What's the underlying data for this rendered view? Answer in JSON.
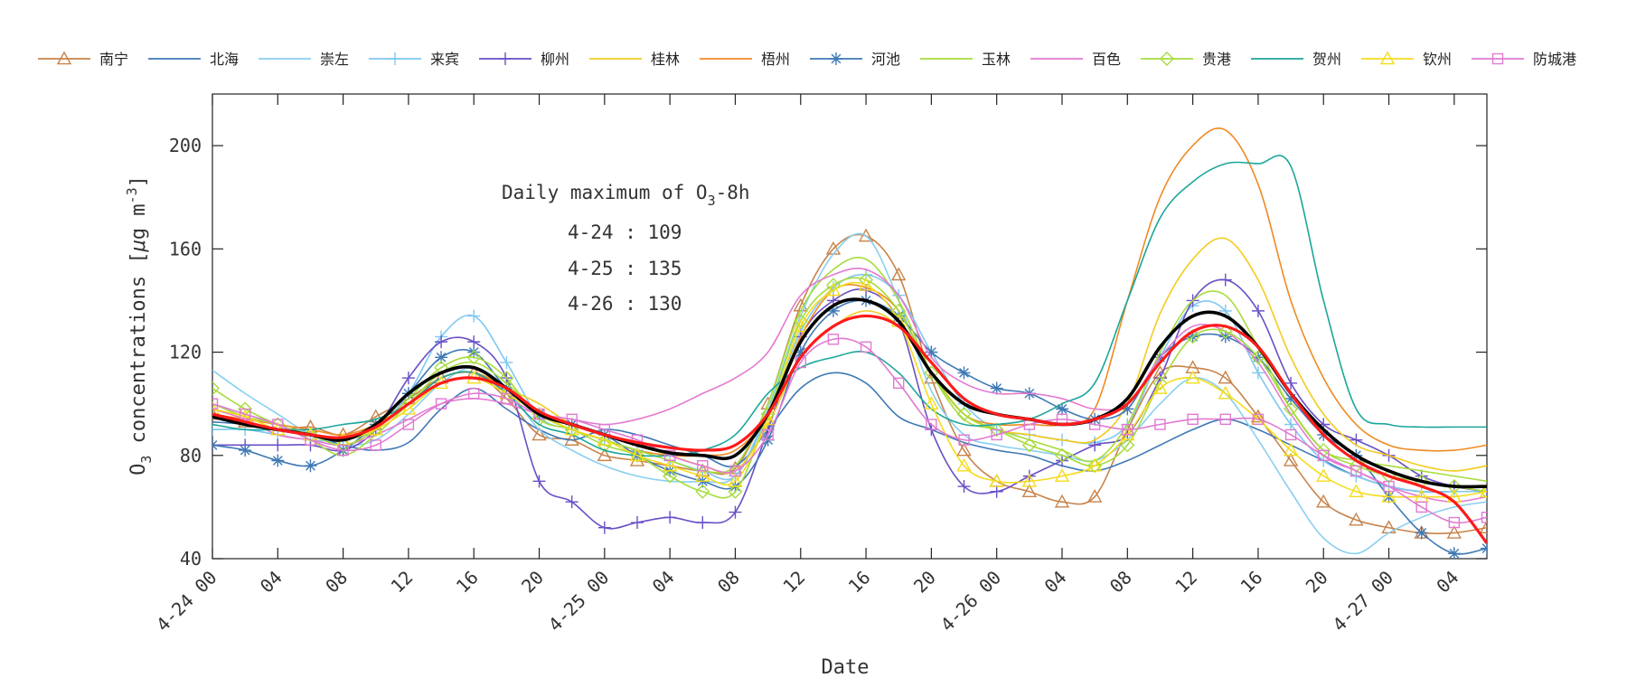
{
  "chart_data": {
    "type": "line",
    "title": "",
    "xlabel": "Date",
    "ylabel": "O3 concentrations [μg m-3]",
    "ylabel_parts": {
      "base": "O",
      "sub": "3",
      "main": " concentrations [",
      "mu": "μ",
      "g m": "g m",
      "sup": "-3",
      "close": "]"
    },
    "ylim": [
      40,
      220
    ],
    "yticks": [
      40,
      80,
      120,
      160,
      200
    ],
    "xlim": [
      0,
      78
    ],
    "x_unit": "hours from 4-24 00",
    "xtick_labels": [
      "4-24 00",
      "04",
      "08",
      "12",
      "16",
      "20",
      "4-25 00",
      "04",
      "08",
      "12",
      "16",
      "20",
      "4-26 00",
      "04",
      "08",
      "12",
      "16",
      "20",
      "4-27 00",
      "04"
    ],
    "grid": false,
    "legend_position": "top",
    "annotation": {
      "title": "Daily maximum of O3-8h",
      "title_base": "Daily maximum of O",
      "title_sub": "3",
      "title_tail": "-8h",
      "rows": [
        "4-24 : 109",
        "4-25 : 135",
        "4-26 : 130"
      ]
    },
    "legend": [
      {
        "name": "南宁",
        "color": "#c8834a",
        "marker": "triangle"
      },
      {
        "name": "北海",
        "color": "#3f79b5",
        "marker": "none"
      },
      {
        "name": "崇左",
        "color": "#88cff0",
        "marker": "none"
      },
      {
        "name": "来宾",
        "color": "#7ec8f2",
        "marker": "plus"
      },
      {
        "name": "柳州",
        "color": "#6a4fc6",
        "marker": "plus"
      },
      {
        "name": "桂林",
        "color": "#f4cb1d",
        "marker": "none"
      },
      {
        "name": "梧州",
        "color": "#f08a22",
        "marker": "none"
      },
      {
        "name": "河池",
        "color": "#3f79b5",
        "marker": "asterisk"
      },
      {
        "name": "玉林",
        "color": "#a6dc3c",
        "marker": "none"
      },
      {
        "name": "百色",
        "color": "#e57ad0",
        "marker": "none"
      },
      {
        "name": "贵港",
        "color": "#a6dc3c",
        "marker": "diamond"
      },
      {
        "name": "贺州",
        "color": "#1ba69a",
        "marker": "none"
      },
      {
        "name": "钦州",
        "color": "#f4dc1d",
        "marker": "triangle"
      },
      {
        "name": "防城港",
        "color": "#e07ad2",
        "marker": "square"
      }
    ],
    "x": [
      0,
      2,
      4,
      6,
      8,
      10,
      12,
      14,
      16,
      18,
      20,
      22,
      24,
      26,
      28,
      30,
      32,
      34,
      36,
      38,
      40,
      42,
      44,
      46,
      48,
      50,
      52,
      54,
      56,
      58,
      60,
      62,
      64,
      66,
      68,
      70,
      72,
      74,
      76,
      78
    ],
    "series": [
      {
        "name": "南宁",
        "color": "#c8834a",
        "width": 1.6,
        "marker": "triangle",
        "values": [
          96,
          93,
          90,
          91,
          88,
          95,
          102,
          110,
          112,
          102,
          88,
          86,
          80,
          78,
          76,
          74,
          75,
          100,
          138,
          160,
          165,
          150,
          110,
          82,
          70,
          66,
          62,
          64,
          90,
          112,
          114,
          110,
          95,
          78,
          62,
          55,
          52,
          50,
          50,
          52
        ]
      },
      {
        "name": "北海",
        "color": "#3f79b5",
        "width": 1.6,
        "marker": "none",
        "values": [
          93,
          92,
          90,
          88,
          84,
          82,
          85,
          98,
          106,
          98,
          90,
          86,
          90,
          88,
          84,
          80,
          76,
          90,
          106,
          112,
          108,
          95,
          90,
          85,
          82,
          80,
          76,
          74,
          78,
          84,
          90,
          94,
          90,
          84,
          78,
          72,
          68,
          66,
          66,
          66
        ]
      },
      {
        "name": "崇左",
        "color": "#88cff0",
        "width": 1.6,
        "marker": "none",
        "values": [
          113,
          104,
          96,
          88,
          84,
          86,
          96,
          108,
          114,
          106,
          90,
          82,
          76,
          72,
          70,
          70,
          72,
          98,
          134,
          158,
          165,
          140,
          105,
          88,
          84,
          82,
          80,
          78,
          86,
          100,
          110,
          104,
          86,
          66,
          48,
          42,
          50,
          56,
          60,
          62
        ]
      },
      {
        "name": "来宾",
        "color": "#7ec8f2",
        "width": 1.6,
        "marker": "plus",
        "values": [
          90,
          90,
          88,
          86,
          86,
          90,
          104,
          126,
          134,
          116,
          95,
          90,
          86,
          82,
          78,
          74,
          72,
          96,
          128,
          145,
          150,
          142,
          120,
          100,
          90,
          88,
          86,
          85,
          92,
          118,
          138,
          136,
          112,
          92,
          78,
          72,
          68,
          66,
          66,
          66
        ]
      },
      {
        "name": "柳州",
        "color": "#6a4fc6",
        "width": 1.6,
        "marker": "plus",
        "values": [
          84,
          84,
          84,
          84,
          82,
          90,
          110,
          124,
          124,
          110,
          70,
          62,
          52,
          54,
          56,
          54,
          58,
          90,
          126,
          140,
          144,
          132,
          90,
          68,
          66,
          72,
          78,
          84,
          88,
          110,
          140,
          148,
          136,
          108,
          92,
          86,
          80,
          72,
          68,
          66
        ]
      },
      {
        "name": "桂林",
        "color": "#f4cb1d",
        "width": 1.6,
        "marker": "none",
        "values": [
          95,
          92,
          90,
          88,
          86,
          92,
          100,
          110,
          112,
          106,
          100,
          92,
          88,
          84,
          80,
          76,
          74,
          92,
          118,
          130,
          136,
          130,
          112,
          96,
          90,
          88,
          86,
          86,
          100,
          135,
          156,
          164,
          148,
          118,
          96,
          84,
          80,
          76,
          74,
          76
        ]
      },
      {
        "name": "梧州",
        "color": "#f08a22",
        "width": 1.6,
        "marker": "none",
        "values": [
          96,
          94,
          92,
          90,
          88,
          92,
          100,
          110,
          112,
          106,
          96,
          90,
          86,
          82,
          80,
          80,
          82,
          96,
          126,
          144,
          145,
          136,
          112,
          96,
          92,
          92,
          92,
          98,
          140,
          180,
          200,
          206,
          185,
          140,
          110,
          92,
          84,
          82,
          82,
          84
        ]
      },
      {
        "name": "河池",
        "color": "#3f79b5",
        "width": 1.6,
        "marker": "asterisk",
        "values": [
          84,
          82,
          78,
          76,
          82,
          92,
          104,
          118,
          120,
          106,
          96,
          92,
          88,
          80,
          74,
          70,
          68,
          86,
          120,
          136,
          140,
          134,
          120,
          112,
          106,
          104,
          98,
          94,
          98,
          118,
          126,
          126,
          118,
          102,
          88,
          80,
          64,
          50,
          42,
          44
        ]
      },
      {
        "name": "玉林",
        "color": "#a6dc3c",
        "width": 1.6,
        "marker": "none",
        "values": [
          100,
          95,
          92,
          86,
          80,
          88,
          100,
          112,
          116,
          108,
          96,
          90,
          86,
          82,
          78,
          74,
          76,
          100,
          136,
          152,
          156,
          140,
          112,
          94,
          90,
          86,
          82,
          78,
          92,
          120,
          140,
          142,
          122,
          98,
          82,
          78,
          76,
          74,
          72,
          70
        ]
      },
      {
        "name": "百色",
        "color": "#e57ad0",
        "width": 1.6,
        "marker": "none",
        "values": [
          98,
          94,
          88,
          86,
          84,
          88,
          94,
          100,
          102,
          100,
          96,
          94,
          92,
          94,
          98,
          104,
          110,
          120,
          142,
          150,
          152,
          142,
          118,
          108,
          104,
          104,
          102,
          98,
          100,
          118,
          130,
          128,
          116,
          96,
          80,
          74,
          68,
          64,
          62,
          64
        ]
      },
      {
        "name": "贵港",
        "color": "#a6dc3c",
        "width": 1.6,
        "marker": "diamond",
        "values": [
          106,
          98,
          92,
          88,
          84,
          90,
          102,
          114,
          118,
          110,
          94,
          90,
          84,
          80,
          72,
          66,
          66,
          96,
          132,
          146,
          148,
          136,
          112,
          96,
          90,
          84,
          80,
          76,
          84,
          108,
          126,
          128,
          118,
          98,
          82,
          76,
          72,
          70,
          68,
          66
        ]
      },
      {
        "name": "贺州",
        "color": "#1ba69a",
        "width": 1.6,
        "marker": "none",
        "values": [
          92,
          90,
          90,
          90,
          92,
          94,
          100,
          110,
          112,
          104,
          92,
          88,
          82,
          80,
          80,
          82,
          88,
          104,
          114,
          118,
          120,
          112,
          98,
          92,
          92,
          94,
          100,
          108,
          140,
          172,
          186,
          193,
          193,
          192,
          140,
          98,
          92,
          91,
          91,
          91
        ]
      },
      {
        "name": "钦州",
        "color": "#f4dc1d",
        "width": 1.6,
        "marker": "triangle",
        "values": [
          98,
          95,
          90,
          88,
          86,
          90,
          98,
          108,
          110,
          104,
          96,
          90,
          86,
          80,
          76,
          72,
          70,
          94,
          130,
          144,
          146,
          132,
          100,
          76,
          70,
          70,
          72,
          76,
          88,
          106,
          110,
          104,
          94,
          82,
          72,
          66,
          64,
          64,
          64,
          66
        ]
      },
      {
        "name": "防城港",
        "color": "#e07ad2",
        "width": 1.6,
        "marker": "square",
        "values": [
          100,
          96,
          92,
          86,
          82,
          84,
          92,
          100,
          104,
          102,
          96,
          94,
          90,
          86,
          80,
          76,
          74,
          88,
          116,
          125,
          122,
          108,
          92,
          86,
          88,
          92,
          94,
          92,
          90,
          92,
          94,
          94,
          94,
          88,
          80,
          74,
          68,
          60,
          54,
          56
        ]
      },
      {
        "name": "",
        "color": "#000000",
        "width": 3.6,
        "marker": "none",
        "values": [
          95,
          92,
          90,
          88,
          86,
          92,
          104,
          112,
          114,
          106,
          96,
          92,
          88,
          84,
          81,
          80,
          80,
          96,
          124,
          138,
          140,
          132,
          112,
          100,
          96,
          94,
          92,
          94,
          102,
          122,
          134,
          134,
          122,
          104,
          90,
          80,
          74,
          70,
          68,
          68
        ]
      },
      {
        "name": "",
        "color": "#ff1a1a",
        "width": 3.2,
        "marker": "none",
        "values": [
          96,
          93,
          90,
          88,
          87,
          91,
          100,
          108,
          110,
          106,
          97,
          92,
          88,
          85,
          83,
          82,
          84,
          96,
          118,
          130,
          134,
          130,
          116,
          102,
          96,
          94,
          92,
          94,
          100,
          116,
          128,
          130,
          122,
          104,
          88,
          78,
          72,
          68,
          62,
          46
        ]
      }
    ]
  }
}
